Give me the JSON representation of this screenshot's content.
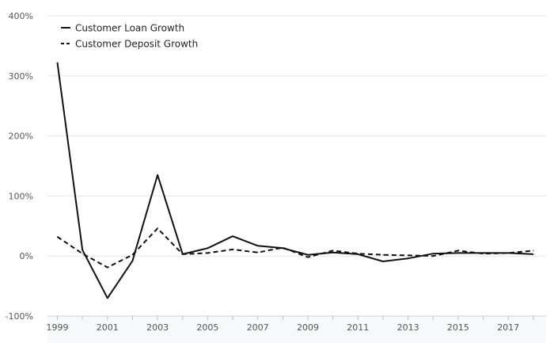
{
  "chart_data": {
    "type": "line",
    "x": [
      "1999",
      "2000",
      "2001",
      "2002",
      "2003",
      "2004",
      "2005",
      "2006",
      "2007",
      "2008",
      "2009",
      "2010",
      "2011",
      "2012",
      "2013",
      "2014",
      "2015",
      "2016",
      "2017",
      "2018"
    ],
    "x_tick_labels": [
      "1999",
      "2001",
      "2003",
      "2005",
      "2007",
      "2009",
      "2011",
      "2013",
      "2015",
      "2017"
    ],
    "y_tick_labels": [
      "400%",
      "300%",
      "200%",
      "100%",
      "0%",
      "-100%"
    ],
    "y_ticks": [
      400,
      300,
      200,
      100,
      0,
      -100
    ],
    "ylim": [
      -100,
      400
    ],
    "grid": true,
    "legend_position": "top-left",
    "series": [
      {
        "name": "Customer Loan Growth",
        "style": "solid",
        "color": "#111111",
        "values": [
          322,
          10,
          -70,
          -8,
          135,
          3,
          13,
          33,
          17,
          13,
          2,
          6,
          3,
          -9,
          -4,
          4,
          5,
          5,
          5,
          3
        ]
      },
      {
        "name": "Customer Deposit Growth",
        "style": "dashed",
        "color": "#111111",
        "values": [
          32,
          4,
          -19,
          2,
          46,
          3,
          5,
          11,
          6,
          14,
          -2,
          9,
          4,
          2,
          1,
          0,
          9,
          4,
          5,
          9
        ]
      }
    ],
    "title": "",
    "xlabel": "",
    "ylabel": ""
  }
}
